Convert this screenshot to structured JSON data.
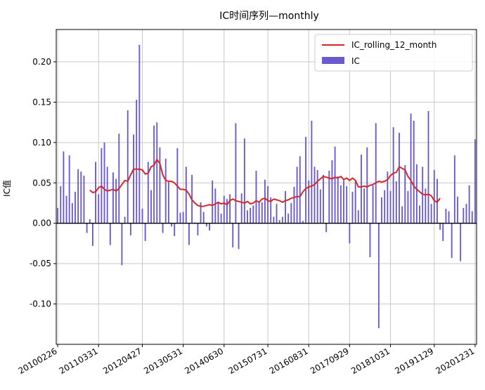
{
  "chart_data": {
    "type": "bar",
    "title": "IC时间序列—monthly",
    "xlabel": "",
    "ylabel": "IC值",
    "ylim": [
      -0.15,
      0.24
    ],
    "yticks": [
      -0.1,
      -0.05,
      0.0,
      0.05,
      0.1,
      0.15,
      0.2
    ],
    "ytick_labels": [
      "-0.10",
      "-0.05",
      "0.00",
      "0.05",
      "0.10",
      "0.15",
      "0.20"
    ],
    "xtick_labels": [
      "20100226",
      "20110331",
      "20120427",
      "20130531",
      "20140630",
      "20150731",
      "20160831",
      "20170929",
      "20181031",
      "20191129",
      "20201231"
    ],
    "legend_position": "top-right",
    "grid": true,
    "zero_line": true,
    "series": [
      {
        "name": "IC_rolling_12_month",
        "type": "line",
        "color": "#d62728",
        "values": [
          null,
          null,
          null,
          null,
          null,
          null,
          null,
          null,
          null,
          null,
          null,
          0.041,
          0.038,
          0.039,
          0.044,
          0.046,
          0.042,
          0.04,
          0.041,
          0.042,
          0.04,
          0.043,
          0.048,
          0.053,
          0.052,
          0.06,
          0.067,
          0.067,
          0.067,
          0.066,
          0.061,
          0.062,
          0.07,
          0.072,
          0.079,
          0.074,
          0.06,
          0.053,
          0.052,
          0.052,
          0.05,
          0.046,
          0.042,
          0.042,
          0.041,
          0.036,
          0.029,
          0.025,
          0.022,
          0.021,
          0.021,
          0.022,
          0.023,
          0.022,
          0.024,
          0.026,
          0.024,
          0.025,
          0.023,
          0.028,
          0.03,
          0.028,
          0.027,
          0.026,
          0.025,
          0.027,
          0.024,
          0.025,
          0.028,
          0.026,
          0.03,
          0.031,
          0.028,
          0.027,
          0.03,
          0.029,
          0.028,
          0.026,
          0.028,
          0.029,
          0.031,
          0.032,
          0.033,
          0.033,
          0.039,
          0.043,
          0.045,
          0.046,
          0.048,
          0.052,
          0.055,
          0.058,
          0.057,
          0.056,
          0.055,
          0.057,
          0.056,
          0.058,
          0.054,
          0.056,
          0.053,
          0.056,
          0.053,
          0.045,
          0.045,
          0.046,
          0.045,
          0.047,
          0.048,
          0.05,
          0.052,
          0.051,
          0.052,
          0.054,
          0.059,
          0.062,
          0.063,
          0.07,
          0.068,
          0.066,
          0.058,
          0.053,
          0.046,
          0.042,
          0.039,
          0.036,
          0.035,
          0.036,
          0.034,
          0.028,
          0.026,
          0.031
        ]
      },
      {
        "name": "IC",
        "type": "bar",
        "color": "#6a5acd",
        "values": [
          0.019,
          0.046,
          0.089,
          0.034,
          0.084,
          0.025,
          0.039,
          0.067,
          0.064,
          0.059,
          -0.012,
          0.005,
          -0.028,
          0.076,
          0.036,
          0.093,
          0.1,
          0.07,
          -0.027,
          0.063,
          0.055,
          0.111,
          -0.052,
          0.008,
          0.14,
          -0.015,
          0.11,
          0.153,
          0.221,
          0.018,
          -0.022,
          0.076,
          0.041,
          0.121,
          0.125,
          0.094,
          -0.012,
          0.08,
          0.051,
          -0.004,
          -0.016,
          0.093,
          0.013,
          0.014,
          0.07,
          -0.027,
          0.06,
          0.001,
          -0.015,
          0.026,
          0.014,
          -0.004,
          -0.009,
          0.053,
          0.043,
          0.026,
          0.012,
          0.034,
          0.03,
          0.036,
          -0.03,
          0.124,
          -0.032,
          0.037,
          0.105,
          0.016,
          0.019,
          0.022,
          0.065,
          0.027,
          0.026,
          0.054,
          0.046,
          0.032,
          0.008,
          0.024,
          0.004,
          0.008,
          0.04,
          0.012,
          0.025,
          0.045,
          0.07,
          0.083,
          0.003,
          0.107,
          0.053,
          0.127,
          0.07,
          0.066,
          0.042,
          0.06,
          -0.011,
          0.065,
          0.078,
          0.095,
          0.058,
          0.047,
          0.053,
          0.046,
          -0.025,
          0.039,
          0.052,
          0.016,
          0.085,
          0.043,
          0.094,
          -0.042,
          0.047,
          0.124,
          -0.13,
          0.032,
          0.041,
          0.064,
          0.04,
          0.119,
          0.052,
          0.112,
          0.021,
          0.072,
          0.04,
          0.136,
          0.127,
          0.073,
          0.022,
          0.07,
          0.043,
          0.139,
          0.024,
          0.066,
          0.055,
          -0.008,
          -0.022,
          0.018,
          0.015,
          -0.043,
          0.084,
          0.033,
          -0.047,
          0.019,
          0.024,
          0.047,
          0.015,
          0.104
        ]
      }
    ]
  }
}
